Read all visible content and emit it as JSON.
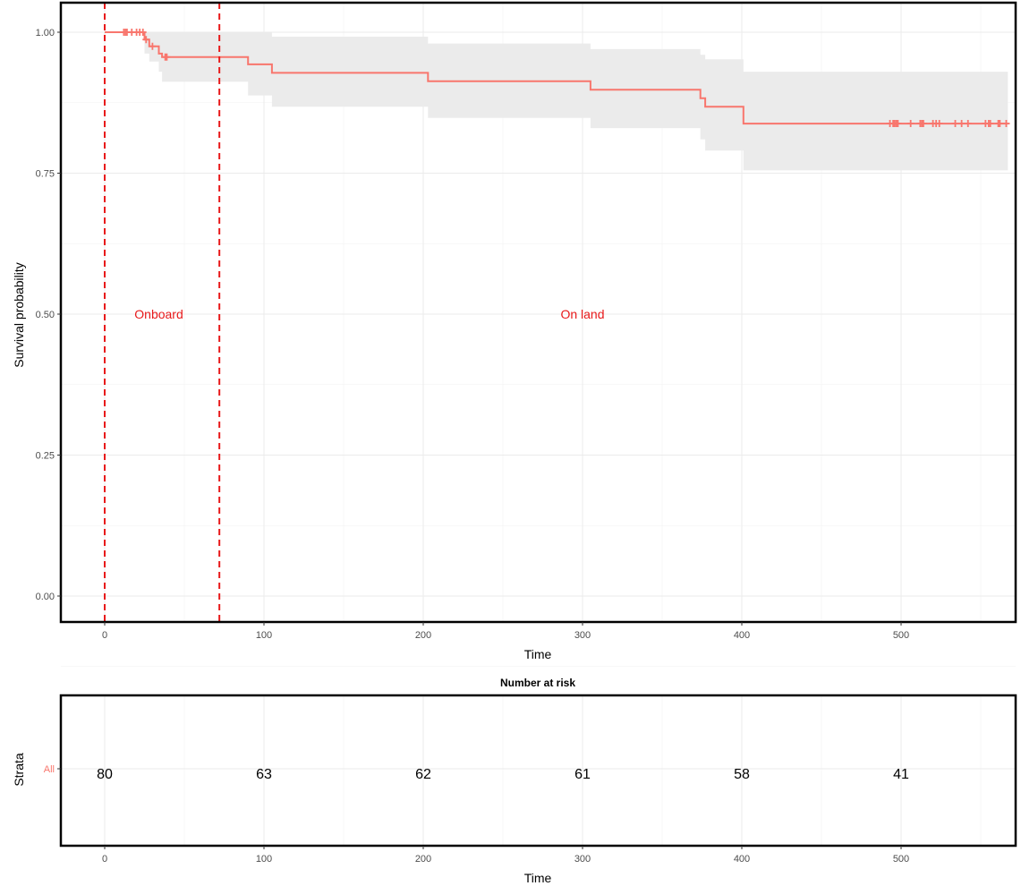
{
  "chart_data": [
    {
      "type": "line",
      "subtype": "kaplan-meier",
      "title": "",
      "xlabel": "Time",
      "ylabel": "Survival probability",
      "xlim": [
        -27,
        567
      ],
      "ylim": [
        -0.05,
        1.05
      ],
      "x_ticks": [
        0,
        100,
        200,
        300,
        400,
        500
      ],
      "y_ticks": [
        0.0,
        0.25,
        0.5,
        0.75,
        1.0
      ],
      "y_tick_labels": [
        "0.00",
        "0.25",
        "0.50",
        "0.75",
        "1.00"
      ],
      "grid": true,
      "colors": {
        "curve": "#F8766D",
        "ci_band": "#EBEBEB",
        "vline": "#E8191A",
        "annotation": "#E8191A"
      },
      "series": [
        {
          "name": "All",
          "step": [
            [
              0,
              1.0
            ],
            [
              25,
              0.987
            ],
            [
              28,
              0.975
            ],
            [
              34,
              0.962
            ],
            [
              36,
              0.956
            ],
            [
              90,
              0.943
            ],
            [
              105,
              0.928
            ],
            [
              203,
              0.913
            ],
            [
              305,
              0.898
            ],
            [
              374,
              0.883
            ],
            [
              377,
              0.868
            ],
            [
              401,
              0.838
            ],
            [
              567,
              0.838
            ]
          ],
          "ci_band": [
            [
              0,
              1.0,
              1.0
            ],
            [
              25,
              0.962,
              1.0
            ],
            [
              28,
              0.948,
              1.0
            ],
            [
              34,
              0.93,
              1.0
            ],
            [
              36,
              0.912,
              1.0
            ],
            [
              90,
              0.888,
              1.0
            ],
            [
              105,
              0.868,
              0.992
            ],
            [
              203,
              0.848,
              0.98
            ],
            [
              305,
              0.83,
              0.97
            ],
            [
              374,
              0.81,
              0.96
            ],
            [
              377,
              0.79,
              0.952
            ],
            [
              401,
              0.755,
              0.93
            ],
            [
              567,
              0.755,
              0.93
            ]
          ],
          "censored": [
            [
              12,
              1.0
            ],
            [
              13,
              1.0
            ],
            [
              14,
              1.0
            ],
            [
              17,
              1.0
            ],
            [
              20,
              1.0
            ],
            [
              22,
              1.0
            ],
            [
              24,
              1.0
            ],
            [
              26,
              0.987
            ],
            [
              30,
              0.975
            ],
            [
              38,
              0.956
            ],
            [
              39,
              0.956
            ],
            [
              493,
              0.838
            ],
            [
              495,
              0.838
            ],
            [
              496,
              0.838
            ],
            [
              497,
              0.838
            ],
            [
              498,
              0.838
            ],
            [
              506,
              0.838
            ],
            [
              512,
              0.838
            ],
            [
              513,
              0.838
            ],
            [
              514,
              0.838
            ],
            [
              520,
              0.838
            ],
            [
              522,
              0.838
            ],
            [
              524,
              0.838
            ],
            [
              534,
              0.838
            ],
            [
              538,
              0.838
            ],
            [
              542,
              0.838
            ],
            [
              553,
              0.838
            ],
            [
              555,
              0.838
            ],
            [
              556,
              0.838
            ],
            [
              561,
              0.838
            ],
            [
              562,
              0.838
            ],
            [
              566,
              0.838
            ]
          ]
        }
      ],
      "vlines": [
        0,
        72
      ],
      "annotations": [
        {
          "text": "Onboard",
          "x": 34,
          "y": 0.5
        },
        {
          "text": "On land",
          "x": 300,
          "y": 0.5
        }
      ]
    },
    {
      "type": "table",
      "title": "Number at risk",
      "xlabel": "Time",
      "ylabel": "Strata",
      "strata": [
        "All"
      ],
      "x": [
        0,
        100,
        200,
        300,
        400,
        500
      ],
      "values": [
        80,
        63,
        62,
        61,
        58,
        41
      ],
      "x_ticks": [
        0,
        100,
        200,
        300,
        400,
        500
      ]
    }
  ]
}
